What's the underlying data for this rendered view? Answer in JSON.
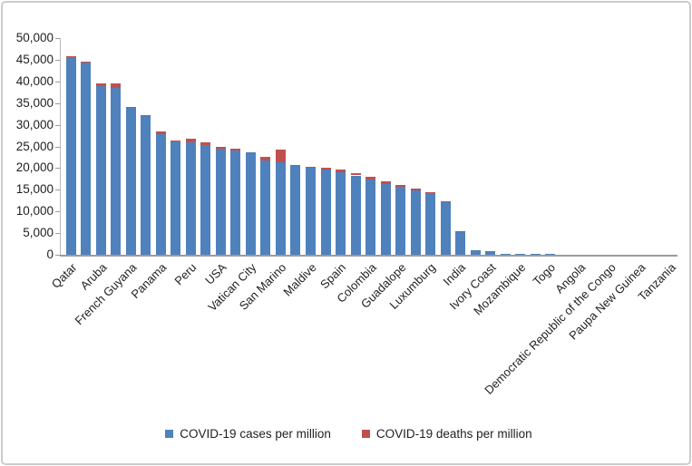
{
  "chart_data": {
    "type": "bar",
    "stacked": true,
    "title": "",
    "xlabel": "",
    "ylabel": "",
    "ylim": [
      0,
      50000
    ],
    "ytick_step": 5000,
    "ytick_labels": [
      "0",
      "5,000",
      "10,000",
      "15,000",
      "20,000",
      "25,000",
      "30,000",
      "35,000",
      "40,000",
      "45,000",
      "50,000"
    ],
    "grid": false,
    "legend_position": "bottom",
    "label_interval": 2,
    "categories": [
      "Qatar",
      "",
      "Aruba",
      "",
      "French Guyana",
      "",
      "Panama",
      "",
      "Peru",
      "",
      "USA",
      "",
      "Vatican City",
      "",
      "San Marino",
      "",
      "Maldive",
      "",
      "Spain",
      "",
      "Colombia",
      "",
      "Guadalope",
      "",
      "Luxumburg",
      "",
      "India",
      "",
      "Ivory Coast",
      "",
      "Mozambique",
      "",
      "Togo",
      "",
      "Angola",
      "",
      "Democratic Republic of the Congo",
      "",
      "Paupa New Guinea",
      "",
      "Tanzania"
    ],
    "series": [
      {
        "name": "COVID-19 cases per million",
        "color": "#4F81BD",
        "values": [
          45700,
          44400,
          38900,
          38500,
          34000,
          32100,
          27800,
          26200,
          26000,
          25300,
          24400,
          24000,
          23700,
          21700,
          21300,
          20600,
          20000,
          19600,
          19100,
          18300,
          17400,
          16400,
          15600,
          14900,
          14200,
          12300,
          5400,
          1000,
          900,
          300,
          250,
          150,
          120,
          100,
          80,
          60,
          50,
          40,
          30,
          20,
          10
        ]
      },
      {
        "name": "COVID-19 deaths per million",
        "color": "#C0504D",
        "values": [
          100,
          100,
          700,
          1000,
          150,
          100,
          600,
          150,
          700,
          550,
          550,
          500,
          0,
          800,
          2900,
          100,
          300,
          500,
          600,
          550,
          550,
          500,
          450,
          450,
          150,
          150,
          100,
          0,
          0,
          0,
          0,
          0,
          0,
          0,
          0,
          0,
          0,
          0,
          0,
          0,
          0
        ]
      }
    ]
  },
  "legend": {
    "cases_label": "COVID-19 cases per million",
    "deaths_label": "COVID-19 deaths per million"
  }
}
